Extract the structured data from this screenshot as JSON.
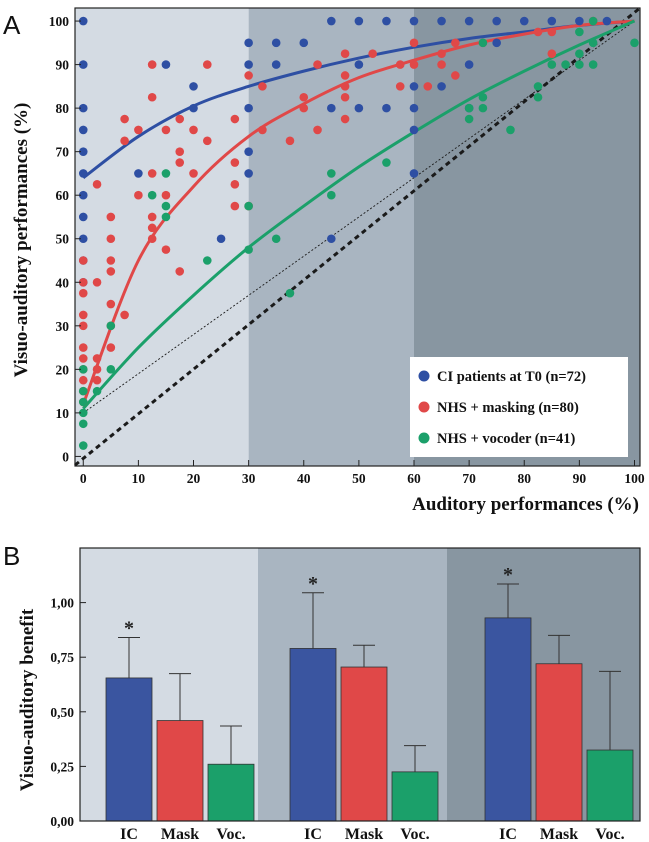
{
  "chart_data": [
    {
      "panel": "A",
      "type": "scatter",
      "xlabel": "Auditory performances (%)",
      "ylabel": "Visuo-auditory performances (%)",
      "xlim": [
        0,
        100
      ],
      "ylim": [
        0,
        100
      ],
      "xticks": [
        "0",
        "10",
        "20",
        "30",
        "40",
        "50",
        "60",
        "70",
        "80",
        "90",
        "100"
      ],
      "yticks": [
        "0",
        "10",
        "20",
        "30",
        "40",
        "50",
        "60",
        "70",
        "80",
        "90",
        "100"
      ],
      "background_bands_x": [
        [
          0,
          30
        ],
        [
          30,
          60
        ],
        [
          60,
          100
        ]
      ],
      "band_colors": [
        "#d4dbe3",
        "#a9b5c1",
        "#8896a1"
      ],
      "legend_position": "bottom-right",
      "series": [
        {
          "name": "CI patients at T0 (n=72)",
          "color": "#2e4fa3",
          "curve": [
            [
              0,
              64
            ],
            [
              10,
              73.5
            ],
            [
              20,
              80.5
            ],
            [
              30,
              85
            ],
            [
              40,
              88.5
            ],
            [
              50,
              91.5
            ],
            [
              60,
              94
            ],
            [
              70,
              96
            ],
            [
              80,
              97.5
            ],
            [
              90,
              99
            ],
            [
              100,
              100
            ]
          ],
          "points": [
            [
              0,
              100
            ],
            [
              0,
              90
            ],
            [
              0,
              80
            ],
            [
              0,
              75
            ],
            [
              0,
              70
            ],
            [
              0,
              65
            ],
            [
              0,
              60
            ],
            [
              0,
              55
            ],
            [
              0,
              50
            ],
            [
              0,
              45
            ],
            [
              0,
              40
            ],
            [
              10,
              65
            ],
            [
              15,
              90
            ],
            [
              20,
              80
            ],
            [
              20,
              85
            ],
            [
              25,
              50
            ],
            [
              30,
              65
            ],
            [
              30,
              70
            ],
            [
              30,
              80
            ],
            [
              30,
              90
            ],
            [
              30,
              95
            ],
            [
              35,
              90
            ],
            [
              35,
              95
            ],
            [
              40,
              95
            ],
            [
              45,
              50
            ],
            [
              45,
              80
            ],
            [
              45,
              100
            ],
            [
              50,
              80
            ],
            [
              50,
              90
            ],
            [
              50,
              100
            ],
            [
              55,
              80
            ],
            [
              55,
              100
            ],
            [
              60,
              65
            ],
            [
              60,
              75
            ],
            [
              60,
              80
            ],
            [
              60,
              85
            ],
            [
              60,
              100
            ],
            [
              65,
              85
            ],
            [
              65,
              100
            ],
            [
              70,
              80
            ],
            [
              70,
              90
            ],
            [
              70,
              100
            ],
            [
              75,
              95
            ],
            [
              75,
              100
            ],
            [
              80,
              100
            ],
            [
              85,
              100
            ],
            [
              90,
              100
            ],
            [
              95,
              100
            ]
          ]
        },
        {
          "name": "NHS + masking (n=80)",
          "color": "#e04848",
          "curve": [
            [
              0,
              12
            ],
            [
              10,
              45
            ],
            [
              20,
              62
            ],
            [
              30,
              73.5
            ],
            [
              40,
              81
            ],
            [
              50,
              87
            ],
            [
              60,
              91
            ],
            [
              70,
              94.5
            ],
            [
              80,
              97
            ],
            [
              90,
              99
            ],
            [
              100,
              100
            ]
          ],
          "points": [
            [
              0,
              12.5
            ],
            [
              0,
              15
            ],
            [
              0,
              17.5
            ],
            [
              0,
              20
            ],
            [
              0,
              22.5
            ],
            [
              0,
              25
            ],
            [
              0,
              30
            ],
            [
              0,
              32.5
            ],
            [
              0,
              37.5
            ],
            [
              0,
              40
            ],
            [
              0,
              45
            ],
            [
              2.5,
              17.5
            ],
            [
              2.5,
              20
            ],
            [
              2.5,
              22.5
            ],
            [
              2.5,
              40
            ],
            [
              2.5,
              62.5
            ],
            [
              5,
              25
            ],
            [
              5,
              30
            ],
            [
              5,
              35
            ],
            [
              5,
              42.5
            ],
            [
              5,
              45
            ],
            [
              5,
              50
            ],
            [
              5,
              55
            ],
            [
              7.5,
              32.5
            ],
            [
              7.5,
              72.5
            ],
            [
              7.5,
              77.5
            ],
            [
              10,
              60
            ],
            [
              10,
              75
            ],
            [
              12.5,
              50
            ],
            [
              12.5,
              52.5
            ],
            [
              12.5,
              55
            ],
            [
              12.5,
              65
            ],
            [
              12.5,
              82.5
            ],
            [
              12.5,
              90
            ],
            [
              15,
              47.5
            ],
            [
              15,
              60
            ],
            [
              15,
              75
            ],
            [
              17.5,
              42.5
            ],
            [
              17.5,
              67.5
            ],
            [
              17.5,
              70
            ],
            [
              17.5,
              77.5
            ],
            [
              20,
              65
            ],
            [
              20,
              75
            ],
            [
              22.5,
              72.5
            ],
            [
              22.5,
              90
            ],
            [
              27.5,
              57.5
            ],
            [
              27.5,
              62.5
            ],
            [
              27.5,
              67.5
            ],
            [
              27.5,
              77.5
            ],
            [
              30,
              57.5
            ],
            [
              30,
              87.5
            ],
            [
              32.5,
              75
            ],
            [
              32.5,
              85
            ],
            [
              37.5,
              72.5
            ],
            [
              40,
              80
            ],
            [
              40,
              82.5
            ],
            [
              42.5,
              75
            ],
            [
              42.5,
              90
            ],
            [
              47.5,
              77.5
            ],
            [
              47.5,
              82.5
            ],
            [
              47.5,
              85
            ],
            [
              47.5,
              87.5
            ],
            [
              47.5,
              92.5
            ],
            [
              52.5,
              92.5
            ],
            [
              57.5,
              85
            ],
            [
              57.5,
              90
            ],
            [
              60,
              90
            ],
            [
              60,
              95
            ],
            [
              62.5,
              85
            ],
            [
              65,
              90
            ],
            [
              65,
              92.5
            ],
            [
              67.5,
              87.5
            ],
            [
              67.5,
              95
            ],
            [
              72.5,
              95
            ],
            [
              82.5,
              97.5
            ],
            [
              85,
              92.5
            ],
            [
              85,
              97.5
            ],
            [
              92.5,
              100
            ]
          ]
        },
        {
          "name": "NHS + vocoder (n=41)",
          "color": "#1ba06a",
          "curve": [
            [
              0,
              11
            ],
            [
              10,
              25
            ],
            [
              20,
              37
            ],
            [
              30,
              48
            ],
            [
              40,
              57.5
            ],
            [
              50,
              66.5
            ],
            [
              60,
              74.5
            ],
            [
              70,
              82
            ],
            [
              80,
              88.5
            ],
            [
              90,
              94.5
            ],
            [
              100,
              100
            ]
          ],
          "points": [
            [
              0,
              2.5
            ],
            [
              0,
              7.5
            ],
            [
              0,
              10
            ],
            [
              0,
              12.5
            ],
            [
              0,
              15
            ],
            [
              0,
              20
            ],
            [
              2.5,
              15
            ],
            [
              5,
              20
            ],
            [
              5,
              30
            ],
            [
              12.5,
              60
            ],
            [
              15,
              55
            ],
            [
              15,
              57.5
            ],
            [
              15,
              65
            ],
            [
              22.5,
              45
            ],
            [
              30,
              47.5
            ],
            [
              30,
              57.5
            ],
            [
              35,
              50
            ],
            [
              37.5,
              37.5
            ],
            [
              45,
              60
            ],
            [
              45,
              65
            ],
            [
              55,
              67.5
            ],
            [
              70,
              77.5
            ],
            [
              70,
              80
            ],
            [
              72.5,
              80
            ],
            [
              72.5,
              82.5
            ],
            [
              72.5,
              95
            ],
            [
              77.5,
              75
            ],
            [
              82.5,
              82.5
            ],
            [
              82.5,
              85
            ],
            [
              85,
              90
            ],
            [
              87.5,
              90
            ],
            [
              90,
              90
            ],
            [
              90,
              92.5
            ],
            [
              90,
              97.5
            ],
            [
              92.5,
              90
            ],
            [
              92.5,
              95
            ],
            [
              92.5,
              100
            ],
            [
              100,
              95
            ]
          ]
        }
      ],
      "reference_lines": [
        "identity (y = x), dashed",
        "dotted diagonal"
      ]
    },
    {
      "panel": "B",
      "type": "bar",
      "ylabel": "Visuo-auditory benefit",
      "ylim": [
        0,
        1.25
      ],
      "yticks": [
        "0,00",
        "0,25",
        "0,50",
        "0,75",
        "1,00"
      ],
      "groups": [
        {
          "categories": [
            "IC",
            "Mask",
            "Voc."
          ],
          "values": [
            0.655,
            0.46,
            0.26
          ],
          "errors": [
            0.185,
            0.215,
            0.175
          ],
          "significant": [
            true,
            false,
            false
          ]
        },
        {
          "categories": [
            "IC",
            "Mask",
            "Voc."
          ],
          "values": [
            0.79,
            0.705,
            0.225
          ],
          "errors": [
            0.255,
            0.1,
            0.12
          ],
          "significant": [
            true,
            false,
            false
          ]
        },
        {
          "categories": [
            "IC",
            "Mask",
            "Voc."
          ],
          "values": [
            0.93,
            0.72,
            0.325
          ],
          "errors": [
            0.155,
            0.13,
            0.36
          ],
          "significant": [
            true,
            false,
            false
          ]
        }
      ],
      "bar_colors": [
        "#3a55a0",
        "#e04848",
        "#1ba06a"
      ],
      "band_colors": [
        "#d4dbe3",
        "#a9b5c1",
        "#8896a1"
      ],
      "significance_marker": "*"
    }
  ],
  "labels": {
    "panel_a_letter": "A",
    "panel_b_letter": "B"
  }
}
